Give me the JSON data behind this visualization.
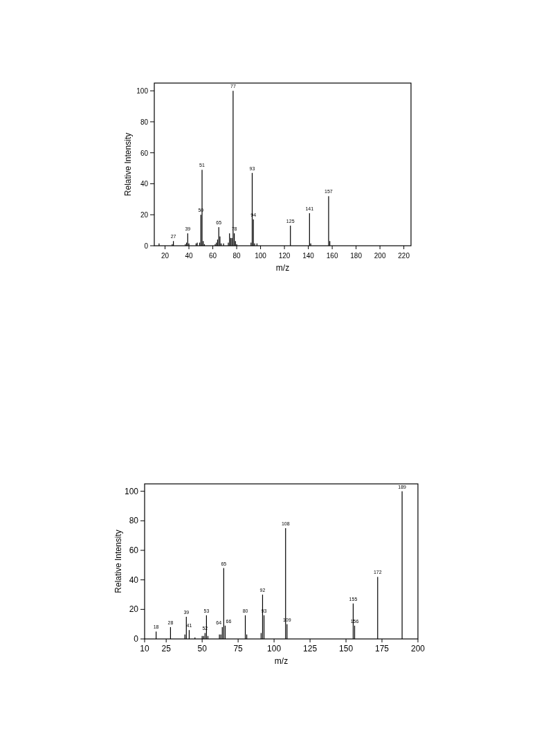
{
  "chart_data": [
    {
      "type": "bar",
      "xlabel": "m/z",
      "ylabel": "Relative Intensity",
      "color": "#000000",
      "x": [
        15,
        26,
        27,
        37,
        38,
        39,
        40,
        46,
        47,
        49,
        50,
        51,
        52,
        53,
        62,
        63,
        64,
        65,
        66,
        67,
        69,
        73,
        74,
        75,
        76,
        77,
        78,
        79,
        80,
        92,
        93,
        94,
        95,
        97,
        125,
        141,
        142,
        157,
        158
      ],
      "values": [
        1.5,
        1,
        3,
        1,
        2,
        8,
        1.5,
        1.5,
        2,
        2,
        20,
        49,
        3,
        1,
        1,
        2,
        4,
        12,
        6,
        1.5,
        1.5,
        2,
        8,
        5,
        5,
        100,
        8,
        3,
        1,
        2,
        47,
        17,
        1.5,
        1.5,
        13,
        21,
        1.5,
        32,
        3
      ],
      "xlim": [
        11,
        226
      ],
      "xticks": [
        20,
        40,
        60,
        80,
        100,
        120,
        140,
        160,
        180,
        200,
        220
      ],
      "ylim": [
        0,
        105
      ],
      "yticks": [
        0,
        20,
        40,
        60,
        80,
        100
      ],
      "annotations": [
        {
          "text": "27",
          "x": 27,
          "y": 3
        },
        {
          "text": "39",
          "x": 39,
          "y": 8
        },
        {
          "text": "50",
          "x": 50,
          "y": 20
        },
        {
          "text": "51",
          "x": 51,
          "y": 49
        },
        {
          "text": "65",
          "x": 65,
          "y": 12
        },
        {
          "text": "77",
          "x": 77,
          "y": 100
        },
        {
          "text": "78",
          "x": 78,
          "y": 8
        },
        {
          "text": "93",
          "x": 93,
          "y": 47
        },
        {
          "text": "94",
          "x": 94,
          "y": 17
        },
        {
          "text": "125",
          "x": 125,
          "y": 13
        },
        {
          "text": "141",
          "x": 141,
          "y": 21
        },
        {
          "text": "157",
          "x": 157,
          "y": 32
        }
      ]
    },
    {
      "type": "bar",
      "xlabel": "m/z",
      "ylabel": "Relative Intensity",
      "color": "#000000",
      "x": [
        18,
        28,
        38,
        39,
        41,
        45,
        50,
        51,
        52,
        53,
        54,
        62,
        63,
        64,
        65,
        66,
        80,
        81,
        91,
        92,
        93,
        108,
        109,
        155,
        156,
        172,
        189
      ],
      "values": [
        5,
        8,
        3,
        15,
        6,
        1,
        2,
        2,
        4,
        16,
        2,
        3,
        3,
        8,
        48,
        9,
        16,
        3,
        4,
        30,
        16,
        75,
        10,
        24,
        9,
        42,
        100
      ],
      "xlim": [
        10,
        200
      ],
      "xticks": [
        10,
        25,
        50,
        75,
        100,
        125,
        150,
        175,
        200
      ],
      "ylim": [
        0,
        105
      ],
      "yticks": [
        0,
        20,
        40,
        60,
        80,
        100
      ],
      "annotations": [
        {
          "text": "18",
          "x": 18,
          "y": 5
        },
        {
          "text": "28",
          "x": 28,
          "y": 8
        },
        {
          "text": "39",
          "x": 39,
          "y": 15
        },
        {
          "text": "41",
          "x": 41,
          "y": 6
        },
        {
          "text": "52",
          "x": 52,
          "y": 4
        },
        {
          "text": "53",
          "x": 53,
          "y": 16
        },
        {
          "text": "64",
          "x": 64,
          "y": 8
        },
        {
          "text": "66",
          "x": 66,
          "y": 9
        },
        {
          "text": "65",
          "x": 65,
          "y": 48
        },
        {
          "text": "80",
          "x": 80,
          "y": 16
        },
        {
          "text": "92",
          "x": 92,
          "y": 30
        },
        {
          "text": "93",
          "x": 93,
          "y": 16
        },
        {
          "text": "108",
          "x": 108,
          "y": 75
        },
        {
          "text": "109",
          "x": 109,
          "y": 10
        },
        {
          "text": "155",
          "x": 155,
          "y": 24
        },
        {
          "text": "156",
          "x": 156,
          "y": 9
        },
        {
          "text": "172",
          "x": 172,
          "y": 42
        },
        {
          "text": "189",
          "x": 189,
          "y": 100
        }
      ]
    }
  ]
}
